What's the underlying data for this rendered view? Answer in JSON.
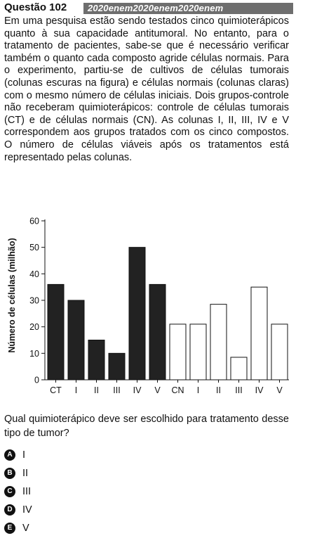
{
  "question": {
    "title": "Questão 102",
    "banner": "2020enem2020enem2020enem",
    "paragraph": "Em uma pesquisa estão sendo testados cinco quimioterápicos quanto à sua capacidade antitumoral. No entanto, para o tratamento de pacientes, sabe-se que é necessário verificar também o quanto cada composto agride células normais. Para o experimento, partiu-se de cultivos de células tumorais (colunas escuras na figura) e células normais (colunas claras) com o mesmo número de células iniciais. Dois grupos-controle não receberam quimioterápicos: controle de células tumorais (CT) e de células normais (CN). As colunas I, II, III, IV e V correspondem aos grupos tratados com os cinco compostos. O número de células viáveis após os tratamentos está representado pelas colunas.",
    "prompt": "Qual quimioterápico deve ser escolhido para tratamento desse tipo de tumor?"
  },
  "options": [
    {
      "letter": "A",
      "text": "I"
    },
    {
      "letter": "B",
      "text": "II"
    },
    {
      "letter": "C",
      "text": "III"
    },
    {
      "letter": "D",
      "text": "IV"
    },
    {
      "letter": "E",
      "text": "V"
    }
  ],
  "chart_data": {
    "type": "bar",
    "title": "",
    "xlabel": "",
    "ylabel": "Número de células (milhão)",
    "ylim": [
      0,
      60
    ],
    "yticks": [
      0,
      10,
      20,
      30,
      40,
      50,
      60
    ],
    "grid": false,
    "categories": [
      "CT",
      "I",
      "II",
      "III",
      "IV",
      "V",
      "CN",
      "I",
      "II",
      "III",
      "IV",
      "V"
    ],
    "values": [
      36,
      30,
      15,
      10,
      50,
      36,
      21,
      21,
      28.5,
      8.5,
      35,
      21
    ],
    "bar_colors": [
      "#222222",
      "#222222",
      "#222222",
      "#222222",
      "#222222",
      "#222222",
      "#ffffff",
      "#ffffff",
      "#ffffff",
      "#ffffff",
      "#ffffff",
      "#ffffff"
    ]
  }
}
